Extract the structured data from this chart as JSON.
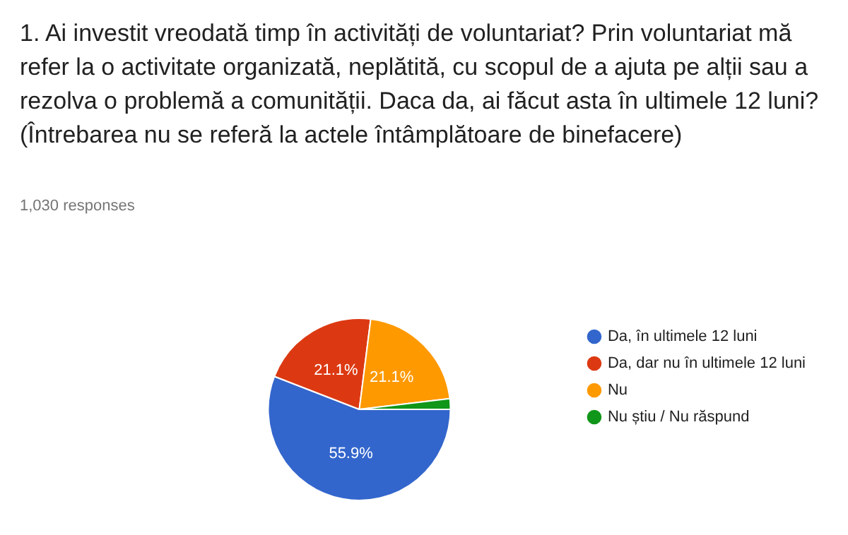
{
  "chart_data": {
    "type": "pie",
    "title": "1. Ai investit vreodată timp în activități de voluntariat? Prin voluntariat mă refer la o activitate organizată, neplătită, cu scopul de a ajuta pe alții sau a rezolva o problemă a comunității. Daca da, ai făcut asta în ultimele 12 luni? (Întrebarea nu se referă la actele întâmplătoare de binefacere)",
    "subtitle": "1,030 responses",
    "categories": [
      "Da, în ultimele 12 luni",
      "Da, dar nu în ultimele 12 luni",
      "Nu",
      "Nu știu / Nu răspund"
    ],
    "values": [
      55.9,
      21.1,
      21.1,
      1.9
    ],
    "colors": [
      "#3366cc",
      "#dc3912",
      "#ff9900",
      "#109618"
    ],
    "value_labels": [
      "55.9%",
      "21.1%",
      "21.1%",
      null
    ],
    "legend": "right"
  }
}
